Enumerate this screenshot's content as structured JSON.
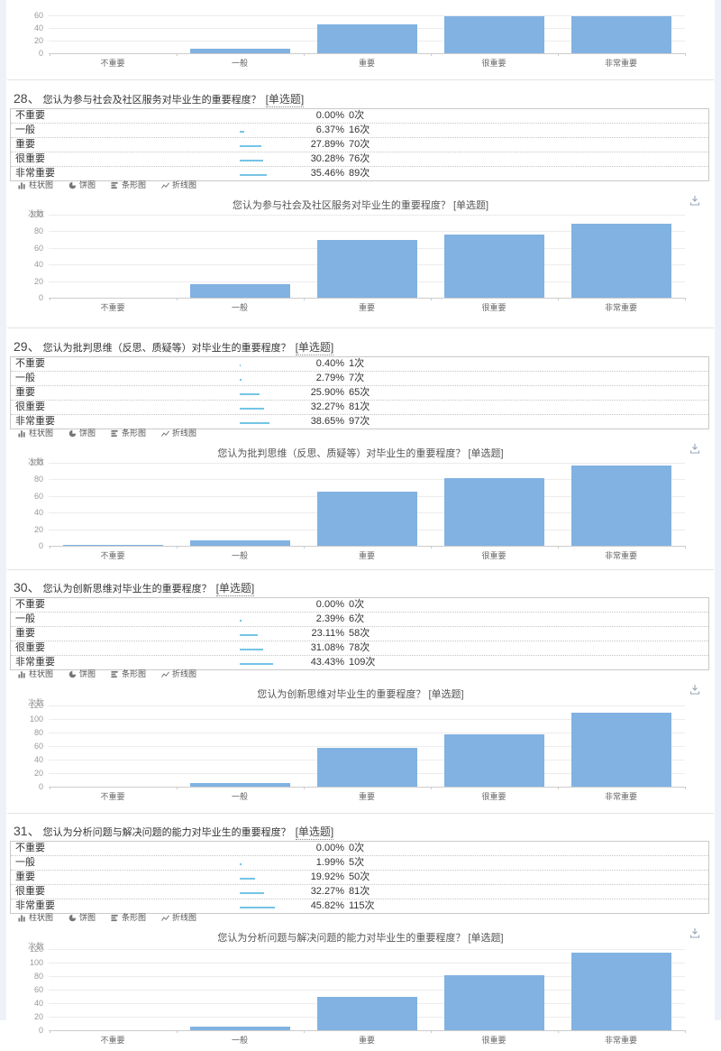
{
  "colors": {
    "bar": "#81b2e2",
    "mini_bar": "#75c4e5",
    "edge_strip": "#eef2f8"
  },
  "y_axis_label": "次数",
  "categories": [
    "不重要",
    "一般",
    "重要",
    "很重要",
    "非常重要"
  ],
  "toolbar": {
    "items": [
      {
        "name": "column-chart",
        "label": "柱状图"
      },
      {
        "name": "pie-chart",
        "label": "饼图"
      },
      {
        "name": "horizontal-bar-chart",
        "label": "条形图"
      },
      {
        "name": "line-chart",
        "label": "折线图"
      }
    ]
  },
  "top_chart": {
    "ticks": [
      0,
      20,
      40,
      60
    ],
    "values": [
      0,
      7,
      46,
      59,
      59
    ]
  },
  "questions": [
    {
      "number": "28、",
      "title": "您认为参与社会及社区服务对毕业生的重要程度？",
      "tag": "[单选题]",
      "rows": [
        {
          "label": "不重要",
          "percent": "0.00%",
          "count": "0次",
          "pct": 0
        },
        {
          "label": "一般",
          "percent": "6.37%",
          "count": "16次",
          "pct": 6.37
        },
        {
          "label": "重要",
          "percent": "27.89%",
          "count": "70次",
          "pct": 27.89
        },
        {
          "label": "很重要",
          "percent": "30.28%",
          "count": "76次",
          "pct": 30.28
        },
        {
          "label": "非常重要",
          "percent": "35.46%",
          "count": "89次",
          "pct": 35.46
        }
      ],
      "chart": {
        "title": "您认为参与社会及社区服务对毕业生的重要程度？ [单选题]",
        "ticks": [
          0,
          20,
          40,
          60,
          80,
          100
        ],
        "ymax": 100,
        "values": [
          0,
          16,
          70,
          76,
          89
        ]
      }
    },
    {
      "number": "29、",
      "title": "您认为批判思维（反思、质疑等）对毕业生的重要程度？",
      "tag": "[单选题]",
      "rows": [
        {
          "label": "不重要",
          "percent": "0.40%",
          "count": "1次",
          "pct": 0.4
        },
        {
          "label": "一般",
          "percent": "2.79%",
          "count": "7次",
          "pct": 2.79
        },
        {
          "label": "重要",
          "percent": "25.90%",
          "count": "65次",
          "pct": 25.9
        },
        {
          "label": "很重要",
          "percent": "32.27%",
          "count": "81次",
          "pct": 32.27
        },
        {
          "label": "非常重要",
          "percent": "38.65%",
          "count": "97次",
          "pct": 38.65
        }
      ],
      "chart": {
        "title": "您认为批判思维（反思、质疑等）对毕业生的重要程度？ [单选题]",
        "ticks": [
          0,
          20,
          40,
          60,
          80,
          100
        ],
        "ymax": 100,
        "values": [
          1,
          7,
          65,
          81,
          97
        ]
      }
    },
    {
      "number": "30、",
      "title": "您认为创新思维对毕业生的重要程度？",
      "tag": "[单选题]",
      "rows": [
        {
          "label": "不重要",
          "percent": "0.00%",
          "count": "0次",
          "pct": 0
        },
        {
          "label": "一般",
          "percent": "2.39%",
          "count": "6次",
          "pct": 2.39
        },
        {
          "label": "重要",
          "percent": "23.11%",
          "count": "58次",
          "pct": 23.11
        },
        {
          "label": "很重要",
          "percent": "31.08%",
          "count": "78次",
          "pct": 31.08
        },
        {
          "label": "非常重要",
          "percent": "43.43%",
          "count": "109次",
          "pct": 43.43
        }
      ],
      "chart": {
        "title": "您认为创新思维对毕业生的重要程度？ [单选题]",
        "ticks": [
          0,
          20,
          40,
          60,
          80,
          100,
          120
        ],
        "ymax": 120,
        "values": [
          0,
          6,
          58,
          78,
          109
        ]
      }
    },
    {
      "number": "31、",
      "title": "您认为分析问题与解决问题的能力对毕业生的重要程度？",
      "tag": "[单选题]",
      "rows": [
        {
          "label": "不重要",
          "percent": "0.00%",
          "count": "0次",
          "pct": 0
        },
        {
          "label": "一般",
          "percent": "1.99%",
          "count": "5次",
          "pct": 1.99
        },
        {
          "label": "重要",
          "percent": "19.92%",
          "count": "50次",
          "pct": 19.92
        },
        {
          "label": "很重要",
          "percent": "32.27%",
          "count": "81次",
          "pct": 32.27
        },
        {
          "label": "非常重要",
          "percent": "45.82%",
          "count": "115次",
          "pct": 45.82
        }
      ],
      "chart": {
        "title": "您认为分析问题与解决问题的能力对毕业生的重要程度？ [单选题]",
        "ticks": [
          0,
          20,
          40,
          60,
          80,
          100,
          120
        ],
        "ymax": 120,
        "values": [
          0,
          5,
          50,
          81,
          115
        ]
      }
    }
  ],
  "chart_data": [
    {
      "type": "bar",
      "title": "",
      "categories": [
        "不重要",
        "一般",
        "重要",
        "很重要",
        "非常重要"
      ],
      "values": [
        0,
        7,
        46,
        59,
        59
      ],
      "xlabel": "",
      "ylabel": "",
      "ylim": [
        0,
        60
      ],
      "note": "partial chart cropped at top of screenshot",
      "grid": true,
      "legend": "none"
    },
    {
      "type": "bar",
      "title": "您认为参与社会及社区服务对毕业生的重要程度？ [单选题]",
      "categories": [
        "不重要",
        "一般",
        "重要",
        "很重要",
        "非常重要"
      ],
      "values": [
        0,
        16,
        70,
        76,
        89
      ],
      "xlabel": "",
      "ylabel": "次数",
      "ylim": [
        0,
        100
      ],
      "grid": true,
      "legend": "none"
    },
    {
      "type": "bar",
      "title": "您认为批判思维（反思、质疑等）对毕业生的重要程度？ [单选题]",
      "categories": [
        "不重要",
        "一般",
        "重要",
        "很重要",
        "非常重要"
      ],
      "values": [
        1,
        7,
        65,
        81,
        97
      ],
      "xlabel": "",
      "ylabel": "次数",
      "ylim": [
        0,
        100
      ],
      "grid": true,
      "legend": "none"
    },
    {
      "type": "bar",
      "title": "您认为创新思维对毕业生的重要程度？ [单选题]",
      "categories": [
        "不重要",
        "一般",
        "重要",
        "很重要",
        "非常重要"
      ],
      "values": [
        0,
        6,
        58,
        78,
        109
      ],
      "xlabel": "",
      "ylabel": "次数",
      "ylim": [
        0,
        120
      ],
      "grid": true,
      "legend": "none"
    },
    {
      "type": "bar",
      "title": "您认为分析问题与解决问题的能力对毕业生的重要程度？ [单选题]",
      "categories": [
        "不重要",
        "一般",
        "重要",
        "很重要",
        "非常重要"
      ],
      "values": [
        0,
        5,
        50,
        81,
        115
      ],
      "xlabel": "",
      "ylabel": "次数",
      "ylim": [
        0,
        120
      ],
      "note": "chart cropped at bottom of screenshot",
      "grid": true,
      "legend": "none"
    }
  ]
}
